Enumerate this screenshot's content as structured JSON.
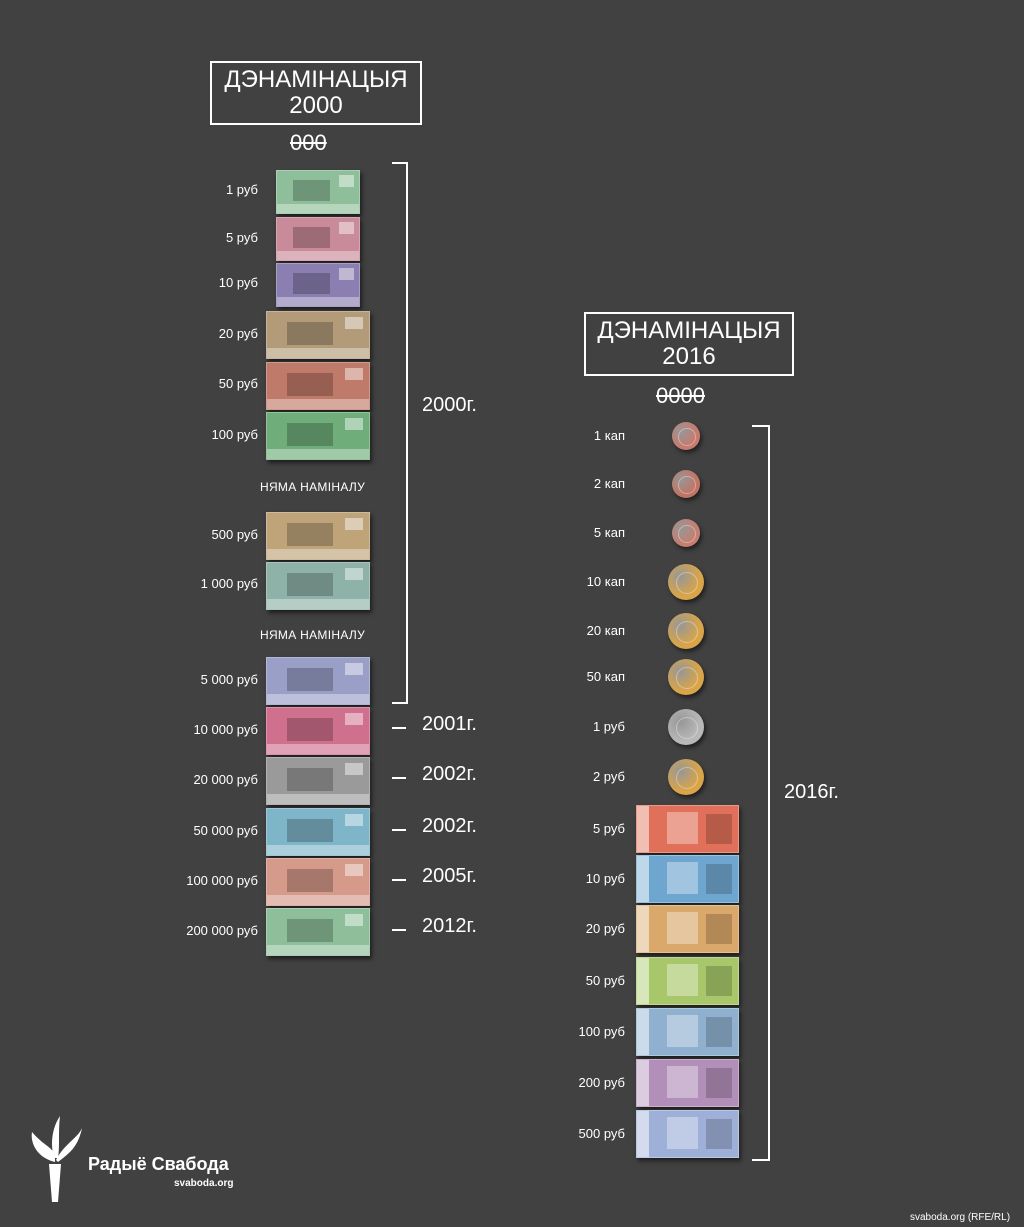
{
  "left": {
    "title_line1": "ДЭНАМІНАЦЫЯ",
    "title_line2": "2000",
    "zeros": "000",
    "bracket_year": "2000г.",
    "note_no_denom_1": "НЯМА НАМІНАЛУ",
    "note_no_denom_2": "НЯМА НАМІНАЛУ",
    "labels": [
      "1 руб",
      "5 руб",
      "10 руб",
      "20 руб",
      "50 руб",
      "100 руб",
      "500 руб",
      "1 000 руб",
      "5 000 руб",
      "10 000 руб",
      "20 000 руб",
      "50 000 руб",
      "100 000 руб",
      "200 000 руб"
    ],
    "later_years": [
      "2001г.",
      "2002г.",
      "2002г.",
      "2005г.",
      "2012г."
    ],
    "note_colors": [
      "#8fbf9a",
      "#c98a9a",
      "#8a7fb0",
      "#b39b7a",
      "#c07a6a",
      "#6fae7a",
      "#bfa47a",
      "#8fb2a8",
      "#9a9fc8",
      "#d0708f",
      "#9a9a9a",
      "#7fb5c8",
      "#d59a8a",
      "#8fbf9a"
    ]
  },
  "right": {
    "title_line1": "ДЭНАМІНАЦЫЯ",
    "title_line2": "2016",
    "zeros": "0000",
    "bracket_year": "2016г.",
    "labels": [
      "1 кап",
      "2 кап",
      "5 кап",
      "10 кап",
      "20 кап",
      "50 кап",
      "1 руб",
      "2 руб",
      "5 руб",
      "10 руб",
      "20 руб",
      "50 руб",
      "100 руб",
      "200 руб",
      "500 руб"
    ],
    "coin_colors": [
      "#c77a6e",
      "#c27464",
      "#c57e70",
      "#d9a548",
      "#d9a548",
      "#d9a548",
      "#b8b8b8",
      "#d9a548"
    ],
    "note_colors": [
      "#e0705a",
      "#6fa6cf",
      "#d9a86a",
      "#a8c76a",
      "#8fb0cf",
      "#b28fb8",
      "#9fb0d8"
    ]
  },
  "logo": {
    "name": "Радыё Свабода",
    "url": "svaboda.org"
  },
  "credit": "svaboda.org (RFE/RL)"
}
